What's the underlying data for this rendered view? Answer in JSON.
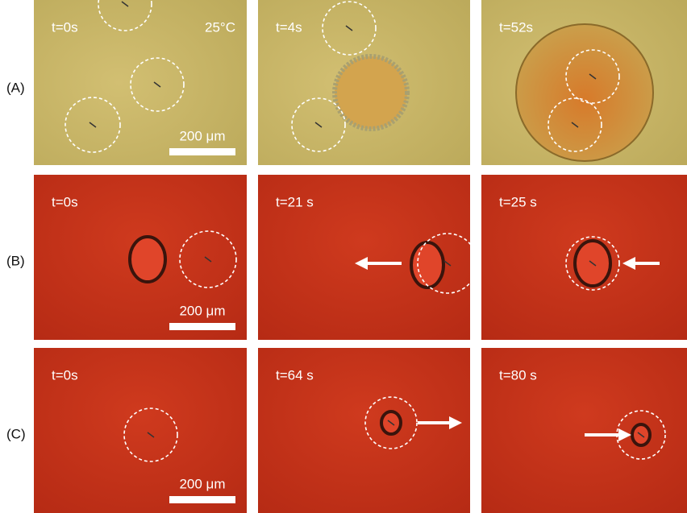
{
  "rows": [
    {
      "label": "(A)",
      "panels": [
        {
          "time": "t=0s",
          "note": "25°C",
          "scale": "200 μm"
        },
        {
          "time": "t=4s"
        },
        {
          "time": "t=52s"
        }
      ]
    },
    {
      "label": "(B)",
      "panels": [
        {
          "time": "t=0s",
          "scale": "200 μm"
        },
        {
          "time": "t=21 s"
        },
        {
          "time": "t=25 s"
        }
      ]
    },
    {
      "label": "(C)",
      "panels": [
        {
          "time": "t=0s",
          "scale": "200 μm"
        },
        {
          "time": "t=64 s"
        },
        {
          "time": "t=80 s"
        }
      ]
    }
  ]
}
